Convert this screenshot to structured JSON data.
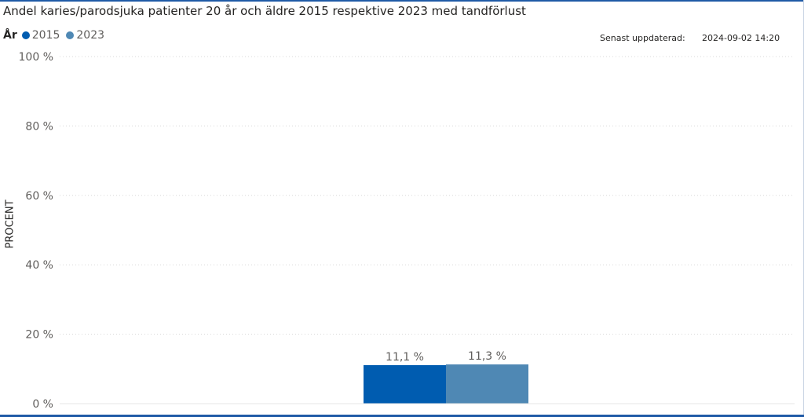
{
  "header": {
    "title": "Andel karies/parodsjuka patienter 20 år och äldre 2015 respektive 2023 med tandförlust",
    "updated_label": "Senast uppdaterad:",
    "updated_value": "2024-09-02 14:20"
  },
  "legend": {
    "title": "År",
    "items": [
      {
        "label": "2015",
        "color": "#005cb0"
      },
      {
        "label": "2023",
        "color": "#4f88b4"
      }
    ]
  },
  "chart_data": {
    "type": "bar",
    "ylabel": "PROCENT",
    "xlabel": "",
    "ylim": [
      0,
      100
    ],
    "yticks": [
      0,
      20,
      40,
      60,
      80,
      100
    ],
    "ytick_labels": [
      "0 %",
      "20 %",
      "40 %",
      "60 %",
      "80 %",
      "100 %"
    ],
    "grid": true,
    "legend_position": "top-left",
    "categories": [
      ""
    ],
    "series": [
      {
        "name": "2015",
        "values": [
          11.1
        ],
        "value_labels": [
          "11,1 %"
        ],
        "color": "#005cb0"
      },
      {
        "name": "2023",
        "values": [
          11.3
        ],
        "value_labels": [
          "11,3 %"
        ],
        "color": "#4f88b4"
      }
    ]
  }
}
